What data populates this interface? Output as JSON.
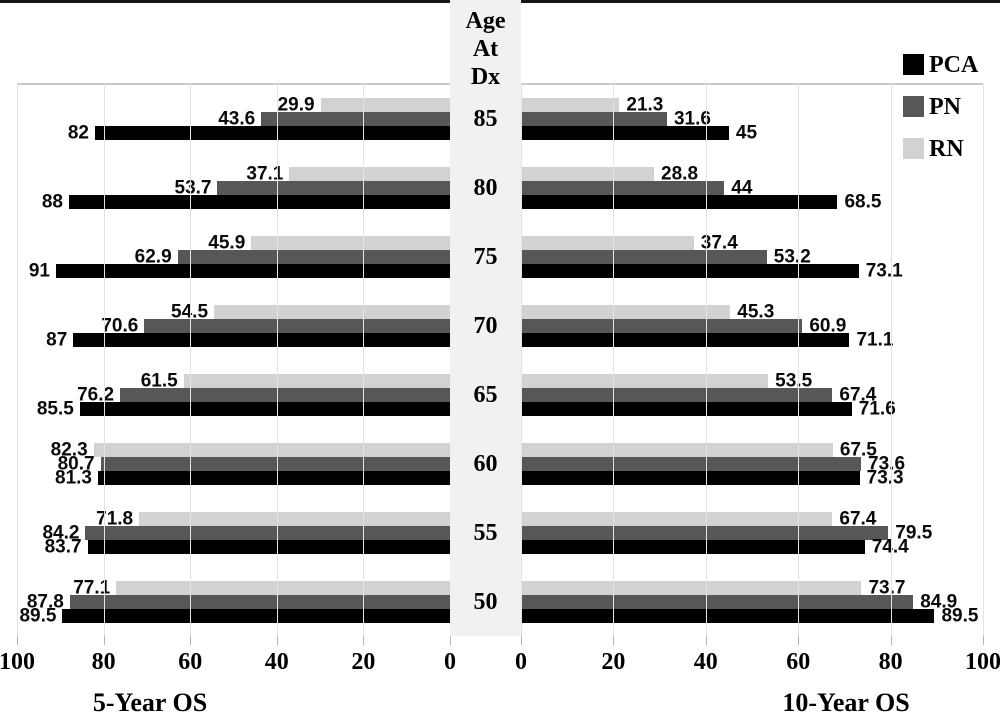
{
  "figure": {
    "background": "#ffffff",
    "top_border_color": "#161616"
  },
  "center_axis": {
    "title_lines": [
      "Age",
      "At",
      "Dx"
    ],
    "strip_color": "#f1f1f1"
  },
  "legend": {
    "position": "top-right",
    "items": [
      {
        "label": "PCA",
        "color": "#000000"
      },
      {
        "label": "PN",
        "color": "#575757"
      },
      {
        "label": "RN",
        "color": "#d2d2d2"
      }
    ]
  },
  "chart_data": {
    "type": "bar",
    "variant": "mirrored-horizontal-pyramid",
    "title": "",
    "category_axis_title": "Age At Dx",
    "categories": [
      85,
      80,
      75,
      70,
      65,
      60,
      55,
      50
    ],
    "row_order_top_to_bottom": [
      "RN",
      "PN",
      "PCA"
    ],
    "axis_ticks": [
      0,
      20,
      40,
      60,
      80,
      100
    ],
    "xlim": [
      0,
      100
    ],
    "grid": true,
    "gridline_color": "#e3e3e3",
    "panels": [
      {
        "side": "left",
        "title": "5-Year OS",
        "direction": "right-to-left",
        "series": [
          {
            "name": "PCA",
            "color": "#000000",
            "values": [
              82,
              88,
              91,
              87,
              85.5,
              81.3,
              83.7,
              89.5
            ]
          },
          {
            "name": "PN",
            "color": "#575757",
            "values": [
              43.6,
              53.7,
              62.9,
              70.6,
              76.2,
              80.7,
              84.2,
              87.8
            ]
          },
          {
            "name": "RN",
            "color": "#d2d2d2",
            "values": [
              29.9,
              37.1,
              45.9,
              54.5,
              61.5,
              82.3,
              71.8,
              77.1
            ]
          }
        ]
      },
      {
        "side": "right",
        "title": "10-Year OS",
        "direction": "left-to-right",
        "series": [
          {
            "name": "PCA",
            "color": "#000000",
            "values": [
              45,
              68.5,
              73.1,
              71.1,
              71.6,
              73.3,
              74.4,
              89.5
            ]
          },
          {
            "name": "PN",
            "color": "#575757",
            "values": [
              31.6,
              44,
              53.2,
              60.9,
              67.4,
              73.6,
              79.5,
              84.9
            ]
          },
          {
            "name": "RN",
            "color": "#d2d2d2",
            "values": [
              21.3,
              28.8,
              37.4,
              45.3,
              53.5,
              67.5,
              67.4,
              73.7
            ]
          }
        ]
      }
    ]
  }
}
